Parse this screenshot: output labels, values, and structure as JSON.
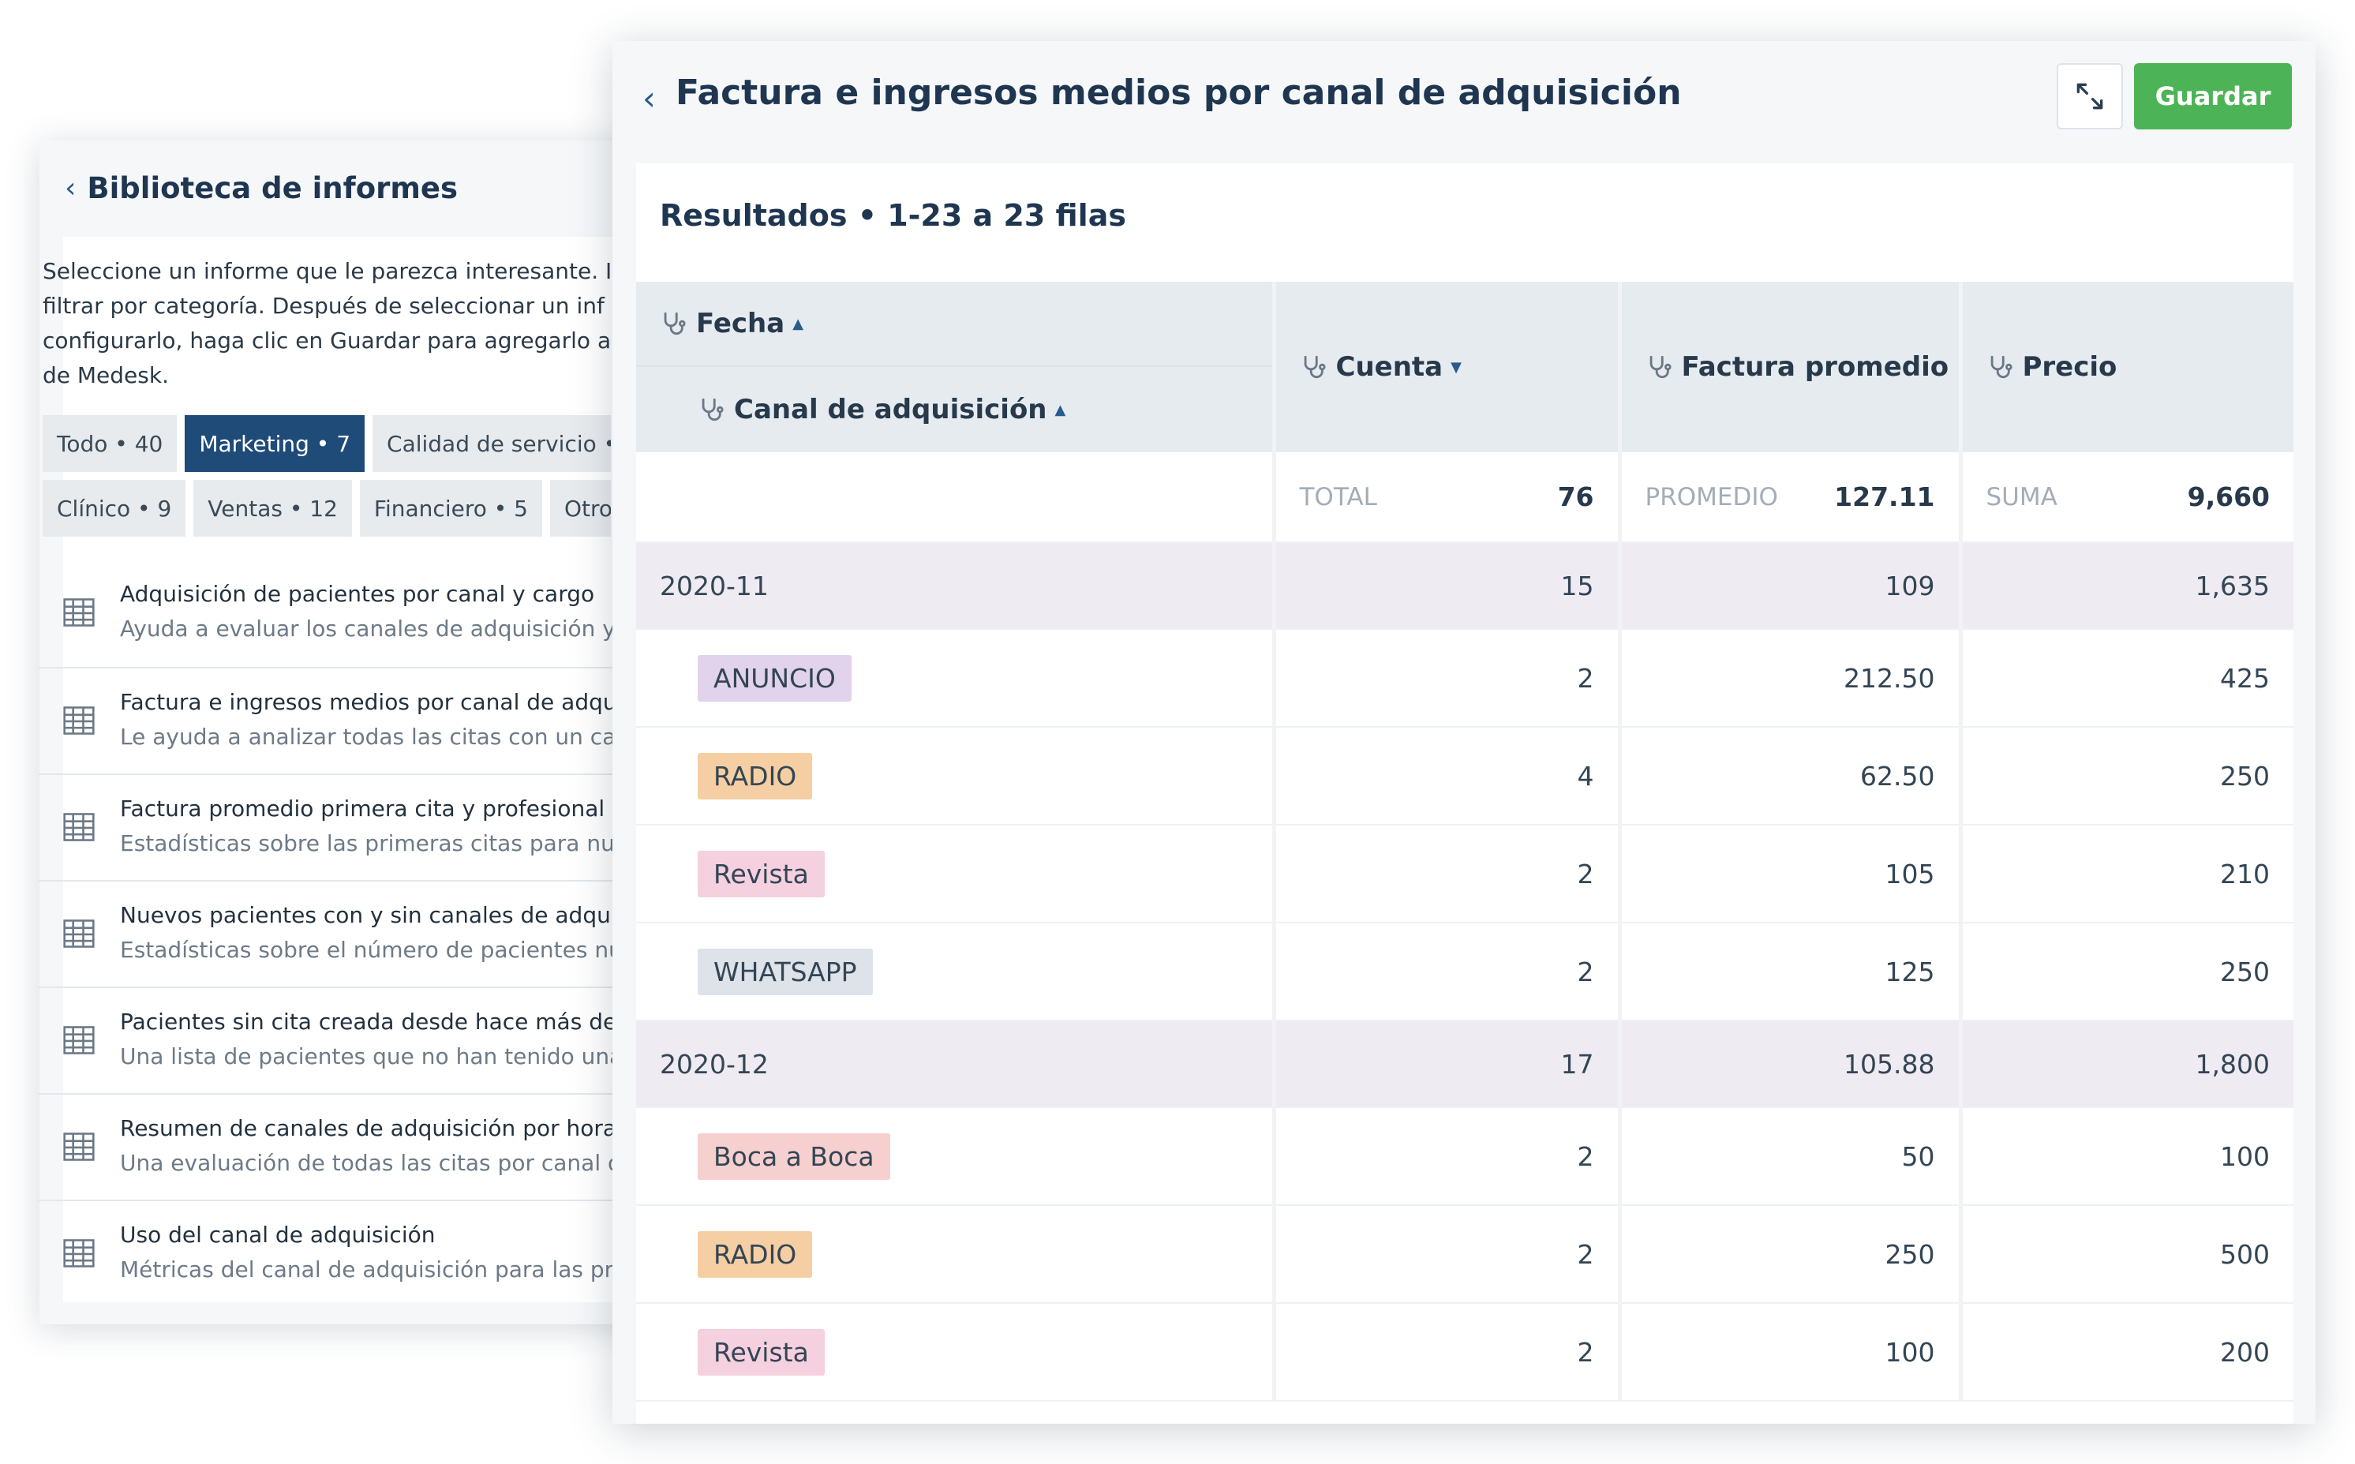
{
  "library": {
    "title": "Biblioteca de informes",
    "description": [
      "Seleccione un informe que le parezca interesante. I",
      "filtrar por categoría. Después de seleccionar un inf",
      "configurarlo, haga clic en Guardar para agregarlo a",
      "de Medesk."
    ],
    "chips_row1": [
      {
        "label": "Todo • 40",
        "active": false
      },
      {
        "label": "Marketing • 7",
        "active": true
      },
      {
        "label": "Calidad de servicio •",
        "active": false
      }
    ],
    "chips_row2": [
      {
        "label": "Clínico • 9",
        "active": false
      },
      {
        "label": "Ventas • 12",
        "active": false
      },
      {
        "label": "Financiero • 5",
        "active": false
      },
      {
        "label": "Otro",
        "active": false
      }
    ],
    "reports": [
      {
        "title": "Adquisición de pacientes por canal y cargo",
        "subtitle": "Ayuda a evaluar los canales de adquisición y"
      },
      {
        "title": "Factura e ingresos medios por canal de adqu",
        "subtitle": "Le ayuda a analizar todas las citas con un car"
      },
      {
        "title": "Factura promedio primera cita y profesional",
        "subtitle": "Estadísticas sobre las primeras citas para nue"
      },
      {
        "title": "Nuevos pacientes con y sin canales de adquis",
        "subtitle": "Estadísticas sobre el número de pacientes nu"
      },
      {
        "title": "Pacientes sin cita creada desde hace más de",
        "subtitle": "Una lista de pacientes que no han tenido una"
      },
      {
        "title": "Resumen de canales de adquisición por hora",
        "subtitle": "Una evaluación de todas las citas por canal d"
      },
      {
        "title": "Uso del canal de adquisición",
        "subtitle": "Métricas del canal de adquisición para las pri"
      }
    ]
  },
  "main": {
    "title": "Factura e ingresos medios por canal de adquisición",
    "save_label": "Guardar",
    "results_title": "Resultados • 1-23 a 23 filas",
    "columns": {
      "fecha": "Fecha",
      "canal": "Canal de adquisición",
      "cuenta": "Cuenta",
      "factura": "Factura promedio",
      "precio": "Precio"
    },
    "totals": {
      "cuenta_label": "TOTAL",
      "cuenta_value": "76",
      "factura_label": "PROMEDIO",
      "factura_value": "127.11",
      "precio_label": "SUMA",
      "precio_value": "9,660"
    },
    "rows": [
      {
        "type": "group",
        "label": "2020-11",
        "cuenta": "15",
        "factura": "109",
        "precio": "1,635"
      },
      {
        "type": "item",
        "label": "ANUNCIO",
        "tag_bg": "#e2d3ec",
        "cuenta": "2",
        "factura": "212.50",
        "precio": "425"
      },
      {
        "type": "item",
        "label": "RADIO",
        "tag_bg": "#f5cfa3",
        "cuenta": "4",
        "factura": "62.50",
        "precio": "250"
      },
      {
        "type": "item",
        "label": "Revista",
        "tag_bg": "#f5d0df",
        "cuenta": "2",
        "factura": "105",
        "precio": "210"
      },
      {
        "type": "item",
        "label": "WHATSAPP",
        "tag_bg": "#dde3e9",
        "cuenta": "2",
        "factura": "125",
        "precio": "250"
      },
      {
        "type": "group",
        "label": "2020-12",
        "cuenta": "17",
        "factura": "105.88",
        "precio": "1,800"
      },
      {
        "type": "item",
        "label": "Boca a Boca",
        "tag_bg": "#f6cfcf",
        "cuenta": "2",
        "factura": "50",
        "precio": "100"
      },
      {
        "type": "item",
        "label": "RADIO",
        "tag_bg": "#f5cfa3",
        "cuenta": "2",
        "factura": "250",
        "precio": "500"
      },
      {
        "type": "item",
        "label": "Revista",
        "tag_bg": "#f5d0df",
        "cuenta": "2",
        "factura": "100",
        "precio": "200"
      }
    ]
  },
  "colors": {
    "accent": "#1f4b79",
    "save": "#4cb456",
    "group_row": "#efebf3"
  },
  "icons": {
    "back": "chevron-left-icon",
    "expand": "expand-icon",
    "report": "table-icon",
    "column": "stethoscope-icon"
  }
}
